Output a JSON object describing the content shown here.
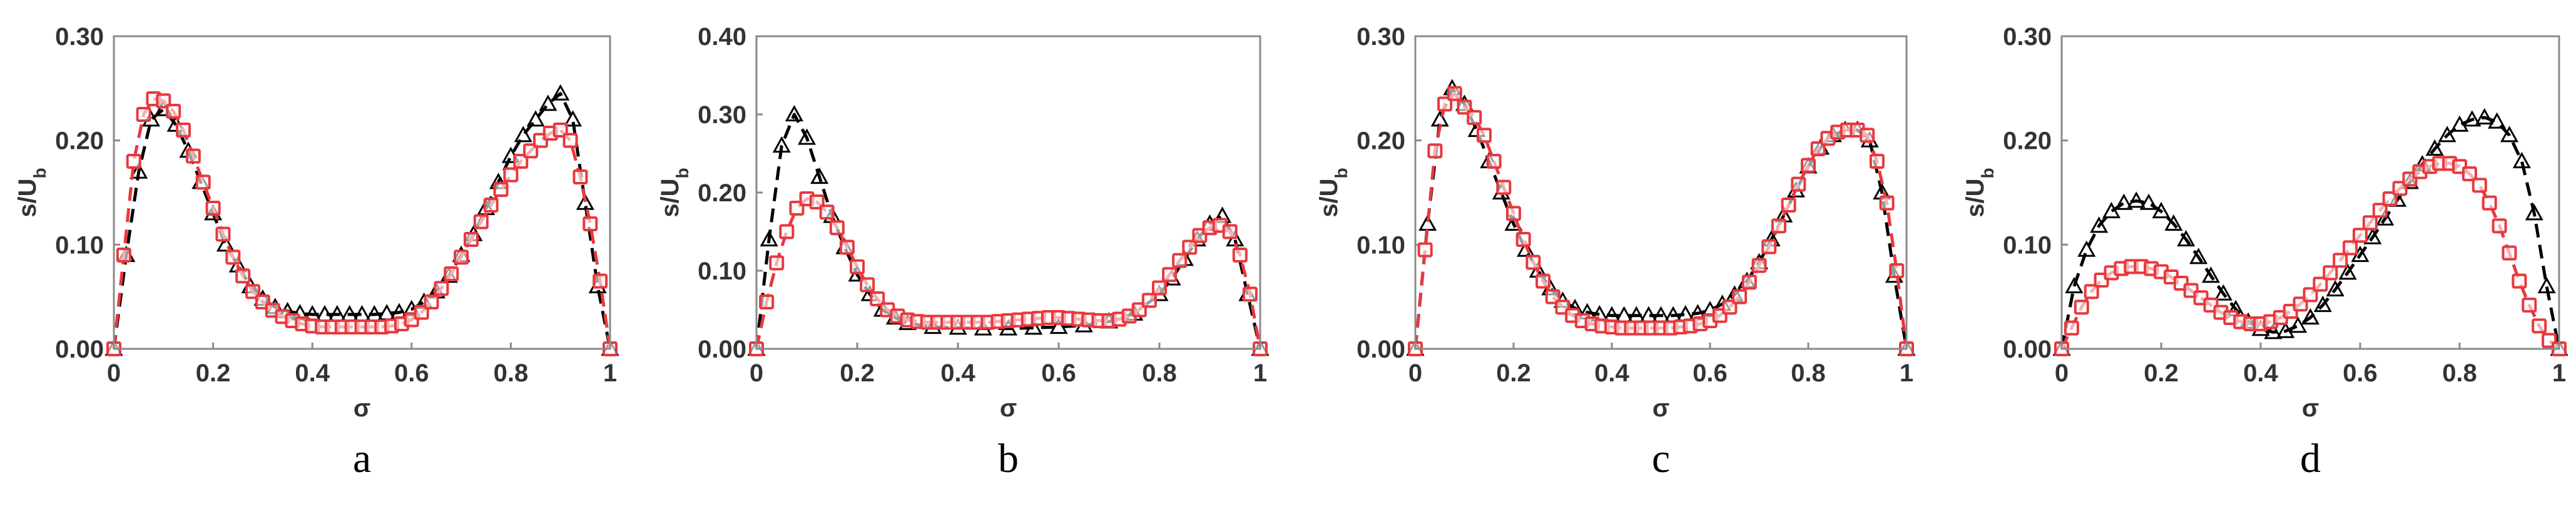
{
  "chart_data": [
    {
      "type": "line",
      "panel_label": "a",
      "xlabel": "σ",
      "ylabel": "s/U",
      "ylabel_sub": "b",
      "xlim": [
        0,
        1
      ],
      "ylim": [
        0,
        0.3
      ],
      "xticks": [
        "0",
        "0.2",
        "0.4",
        "0.6",
        "0.8",
        "1"
      ],
      "yticks": [
        "0.00",
        "0.10",
        "0.20",
        "0.30"
      ],
      "colors": {
        "series1": "#000000",
        "series2": "#e8383d"
      },
      "series": [
        {
          "marker": "triangle",
          "x": [
            0,
            0.025,
            0.05,
            0.075,
            0.1,
            0.125,
            0.15,
            0.175,
            0.2,
            0.225,
            0.25,
            0.275,
            0.3,
            0.325,
            0.35,
            0.375,
            0.4,
            0.425,
            0.45,
            0.475,
            0.5,
            0.525,
            0.55,
            0.575,
            0.6,
            0.625,
            0.65,
            0.675,
            0.7,
            0.725,
            0.75,
            0.775,
            0.8,
            0.825,
            0.85,
            0.875,
            0.9,
            0.925,
            0.95,
            0.975,
            1
          ],
          "y": [
            0,
            0.09,
            0.17,
            0.22,
            0.23,
            0.215,
            0.19,
            0.16,
            0.13,
            0.1,
            0.08,
            0.06,
            0.048,
            0.04,
            0.036,
            0.034,
            0.033,
            0.033,
            0.033,
            0.033,
            0.033,
            0.033,
            0.034,
            0.035,
            0.038,
            0.045,
            0.055,
            0.07,
            0.09,
            0.11,
            0.135,
            0.16,
            0.185,
            0.205,
            0.22,
            0.235,
            0.245,
            0.22,
            0.14,
            0.06,
            0
          ]
        },
        {
          "marker": "square",
          "x": [
            0,
            0.02,
            0.04,
            0.06,
            0.08,
            0.1,
            0.12,
            0.14,
            0.16,
            0.18,
            0.2,
            0.22,
            0.24,
            0.26,
            0.28,
            0.3,
            0.32,
            0.34,
            0.36,
            0.38,
            0.4,
            0.42,
            0.44,
            0.46,
            0.48,
            0.5,
            0.52,
            0.54,
            0.56,
            0.58,
            0.6,
            0.62,
            0.64,
            0.66,
            0.68,
            0.7,
            0.72,
            0.74,
            0.76,
            0.78,
            0.8,
            0.82,
            0.84,
            0.86,
            0.88,
            0.9,
            0.92,
            0.94,
            0.96,
            0.98,
            1
          ],
          "y": [
            0,
            0.09,
            0.18,
            0.225,
            0.24,
            0.238,
            0.228,
            0.21,
            0.185,
            0.16,
            0.135,
            0.11,
            0.088,
            0.07,
            0.055,
            0.045,
            0.037,
            0.031,
            0.027,
            0.024,
            0.022,
            0.021,
            0.021,
            0.021,
            0.021,
            0.021,
            0.021,
            0.021,
            0.022,
            0.024,
            0.028,
            0.035,
            0.045,
            0.058,
            0.072,
            0.088,
            0.105,
            0.122,
            0.138,
            0.153,
            0.167,
            0.18,
            0.19,
            0.2,
            0.207,
            0.21,
            0.2,
            0.165,
            0.12,
            0.065,
            0
          ]
        }
      ]
    },
    {
      "type": "line",
      "panel_label": "b",
      "xlabel": "σ",
      "ylabel": "s/U",
      "ylabel_sub": "b",
      "xlim": [
        0,
        1
      ],
      "ylim": [
        0,
        0.4
      ],
      "xticks": [
        "0",
        "0.2",
        "0.4",
        "0.6",
        "0.8",
        "1"
      ],
      "yticks": [
        "0.00",
        "0.10",
        "0.20",
        "0.30",
        "0.40"
      ],
      "colors": {
        "series1": "#000000",
        "series2": "#e8383d"
      },
      "series": [
        {
          "marker": "triangle",
          "x": [
            0,
            0.025,
            0.05,
            0.075,
            0.1,
            0.125,
            0.15,
            0.175,
            0.2,
            0.225,
            0.25,
            0.275,
            0.3,
            0.35,
            0.4,
            0.45,
            0.5,
            0.55,
            0.6,
            0.65,
            0.7,
            0.75,
            0.8,
            0.825,
            0.85,
            0.875,
            0.9,
            0.925,
            0.95,
            0.975,
            1
          ],
          "y": [
            0,
            0.14,
            0.26,
            0.3,
            0.27,
            0.22,
            0.17,
            0.13,
            0.095,
            0.07,
            0.05,
            0.04,
            0.033,
            0.028,
            0.027,
            0.026,
            0.026,
            0.027,
            0.028,
            0.03,
            0.035,
            0.045,
            0.07,
            0.09,
            0.115,
            0.14,
            0.16,
            0.17,
            0.14,
            0.07,
            0
          ]
        },
        {
          "marker": "square",
          "x": [
            0,
            0.02,
            0.04,
            0.06,
            0.08,
            0.1,
            0.12,
            0.14,
            0.16,
            0.18,
            0.2,
            0.22,
            0.24,
            0.26,
            0.28,
            0.3,
            0.32,
            0.34,
            0.36,
            0.38,
            0.4,
            0.42,
            0.44,
            0.46,
            0.48,
            0.5,
            0.52,
            0.54,
            0.56,
            0.58,
            0.6,
            0.62,
            0.64,
            0.66,
            0.68,
            0.7,
            0.72,
            0.74,
            0.76,
            0.78,
            0.8,
            0.82,
            0.84,
            0.86,
            0.88,
            0.9,
            0.92,
            0.94,
            0.96,
            0.98,
            1
          ],
          "y": [
            0,
            0.06,
            0.11,
            0.15,
            0.18,
            0.192,
            0.188,
            0.175,
            0.155,
            0.13,
            0.105,
            0.082,
            0.064,
            0.05,
            0.042,
            0.037,
            0.035,
            0.034,
            0.034,
            0.034,
            0.034,
            0.034,
            0.034,
            0.034,
            0.035,
            0.036,
            0.037,
            0.038,
            0.039,
            0.04,
            0.04,
            0.039,
            0.038,
            0.037,
            0.036,
            0.036,
            0.038,
            0.042,
            0.05,
            0.062,
            0.078,
            0.095,
            0.113,
            0.13,
            0.145,
            0.155,
            0.158,
            0.15,
            0.12,
            0.07,
            0
          ]
        }
      ]
    },
    {
      "type": "line",
      "panel_label": "c",
      "xlabel": "σ",
      "ylabel": "s/U",
      "ylabel_sub": "b",
      "xlim": [
        0,
        1
      ],
      "ylim": [
        0,
        0.3
      ],
      "xticks": [
        "0",
        "0.2",
        "0.4",
        "0.6",
        "0.8",
        "1"
      ],
      "yticks": [
        "0.00",
        "0.10",
        "0.20",
        "0.30"
      ],
      "colors": {
        "series1": "#000000",
        "series2": "#e8383d"
      },
      "series": [
        {
          "marker": "triangle",
          "x": [
            0,
            0.025,
            0.05,
            0.075,
            0.1,
            0.125,
            0.15,
            0.175,
            0.2,
            0.225,
            0.25,
            0.275,
            0.3,
            0.325,
            0.35,
            0.375,
            0.4,
            0.425,
            0.45,
            0.475,
            0.5,
            0.525,
            0.55,
            0.575,
            0.6,
            0.625,
            0.65,
            0.675,
            0.7,
            0.725,
            0.75,
            0.775,
            0.8,
            0.825,
            0.85,
            0.875,
            0.9,
            0.925,
            0.95,
            0.975,
            1
          ],
          "y": [
            0,
            0.12,
            0.22,
            0.25,
            0.235,
            0.21,
            0.18,
            0.15,
            0.12,
            0.095,
            0.075,
            0.058,
            0.046,
            0.039,
            0.035,
            0.033,
            0.032,
            0.032,
            0.032,
            0.032,
            0.032,
            0.032,
            0.033,
            0.034,
            0.037,
            0.043,
            0.052,
            0.065,
            0.083,
            0.105,
            0.128,
            0.152,
            0.175,
            0.193,
            0.205,
            0.21,
            0.21,
            0.2,
            0.15,
            0.07,
            0
          ]
        },
        {
          "marker": "square",
          "x": [
            0,
            0.02,
            0.04,
            0.06,
            0.08,
            0.1,
            0.12,
            0.14,
            0.16,
            0.18,
            0.2,
            0.22,
            0.24,
            0.26,
            0.28,
            0.3,
            0.32,
            0.34,
            0.36,
            0.38,
            0.4,
            0.42,
            0.44,
            0.46,
            0.48,
            0.5,
            0.52,
            0.54,
            0.56,
            0.58,
            0.6,
            0.62,
            0.64,
            0.66,
            0.68,
            0.7,
            0.72,
            0.74,
            0.76,
            0.78,
            0.8,
            0.82,
            0.84,
            0.86,
            0.88,
            0.9,
            0.92,
            0.94,
            0.96,
            0.98,
            1
          ],
          "y": [
            0,
            0.095,
            0.19,
            0.235,
            0.245,
            0.232,
            0.222,
            0.205,
            0.18,
            0.155,
            0.13,
            0.105,
            0.083,
            0.065,
            0.05,
            0.04,
            0.032,
            0.027,
            0.024,
            0.022,
            0.021,
            0.02,
            0.02,
            0.02,
            0.02,
            0.02,
            0.02,
            0.021,
            0.022,
            0.024,
            0.027,
            0.032,
            0.04,
            0.05,
            0.064,
            0.08,
            0.098,
            0.118,
            0.138,
            0.158,
            0.176,
            0.192,
            0.202,
            0.208,
            0.21,
            0.21,
            0.205,
            0.18,
            0.14,
            0.075,
            0
          ]
        }
      ]
    },
    {
      "type": "line",
      "panel_label": "d",
      "xlabel": "σ",
      "ylabel": "s/U",
      "ylabel_sub": "b",
      "xlim": [
        0,
        1
      ],
      "ylim": [
        0,
        0.3
      ],
      "xticks": [
        "0",
        "0.2",
        "0.4",
        "0.6",
        "0.8",
        "1"
      ],
      "yticks": [
        "0.00",
        "0.10",
        "0.20",
        "0.30"
      ],
      "colors": {
        "series1": "#000000",
        "series2": "#e8383d"
      },
      "series": [
        {
          "marker": "triangle",
          "x": [
            0,
            0.025,
            0.05,
            0.075,
            0.1,
            0.125,
            0.15,
            0.175,
            0.2,
            0.225,
            0.25,
            0.275,
            0.3,
            0.325,
            0.35,
            0.375,
            0.4,
            0.425,
            0.45,
            0.475,
            0.5,
            0.525,
            0.55,
            0.575,
            0.6,
            0.625,
            0.65,
            0.675,
            0.7,
            0.725,
            0.75,
            0.775,
            0.8,
            0.825,
            0.85,
            0.875,
            0.9,
            0.925,
            0.95,
            0.975,
            1
          ],
          "y": [
            0,
            0.06,
            0.095,
            0.118,
            0.132,
            0.14,
            0.142,
            0.14,
            0.132,
            0.12,
            0.105,
            0.088,
            0.07,
            0.053,
            0.038,
            0.026,
            0.019,
            0.016,
            0.017,
            0.022,
            0.03,
            0.042,
            0.057,
            0.073,
            0.09,
            0.107,
            0.125,
            0.143,
            0.16,
            0.177,
            0.192,
            0.205,
            0.215,
            0.22,
            0.222,
            0.218,
            0.205,
            0.18,
            0.13,
            0.06,
            0
          ]
        },
        {
          "marker": "square",
          "x": [
            0,
            0.02,
            0.04,
            0.06,
            0.08,
            0.1,
            0.12,
            0.14,
            0.16,
            0.18,
            0.2,
            0.22,
            0.24,
            0.26,
            0.28,
            0.3,
            0.32,
            0.34,
            0.36,
            0.38,
            0.4,
            0.42,
            0.44,
            0.46,
            0.48,
            0.5,
            0.52,
            0.54,
            0.56,
            0.58,
            0.6,
            0.62,
            0.64,
            0.66,
            0.68,
            0.7,
            0.72,
            0.74,
            0.76,
            0.78,
            0.8,
            0.82,
            0.84,
            0.86,
            0.88,
            0.9,
            0.92,
            0.94,
            0.96,
            0.98,
            1
          ],
          "y": [
            0,
            0.02,
            0.04,
            0.055,
            0.066,
            0.073,
            0.077,
            0.079,
            0.079,
            0.077,
            0.074,
            0.069,
            0.063,
            0.056,
            0.049,
            0.042,
            0.035,
            0.03,
            0.026,
            0.024,
            0.024,
            0.026,
            0.03,
            0.036,
            0.043,
            0.052,
            0.062,
            0.073,
            0.085,
            0.097,
            0.109,
            0.121,
            0.133,
            0.144,
            0.154,
            0.163,
            0.17,
            0.175,
            0.178,
            0.178,
            0.175,
            0.168,
            0.157,
            0.14,
            0.118,
            0.092,
            0.065,
            0.042,
            0.022,
            0.008,
            0
          ]
        }
      ]
    }
  ]
}
